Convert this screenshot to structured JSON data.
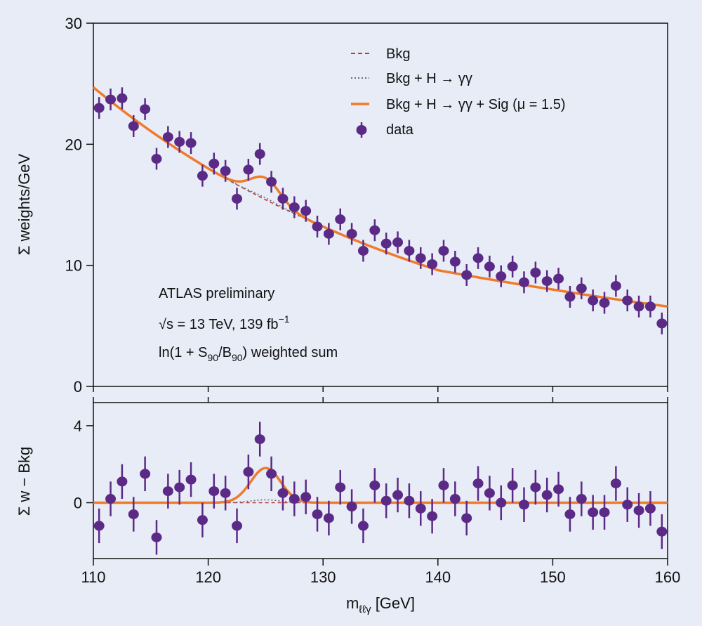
{
  "chart_data": [
    {
      "type": "scatter",
      "panel": "main",
      "ylabel": "Σ weights/GeV",
      "xlim": [
        110,
        160
      ],
      "ylim": [
        0,
        30
      ],
      "yticks": [
        0,
        10,
        20,
        30
      ],
      "legend": {
        "placement": "top-right",
        "entries": [
          {
            "label": "Bkg",
            "style": "dashed",
            "color": "#c0392b"
          },
          {
            "label": "Bkg + H → γγ",
            "style": "dotted",
            "color": "#5b6f85"
          },
          {
            "label": "Bkg + H → γγ + Sig (μ = 1.5)",
            "style": "solid",
            "color": "#f07a2a"
          },
          {
            "label": "data",
            "style": "marker",
            "color": "#5b2a86"
          }
        ]
      },
      "annotations": {
        "experiment": "ATLAS preliminary",
        "energy_prefix": "√s = 13 TeV, 139 fb",
        "energy_sup": "−1",
        "weight_a": "ln(1 + S",
        "weight_sub1": "90",
        "weight_b": "/B",
        "weight_sub2": "90",
        "weight_c": ") weighted sum"
      },
      "series": [
        {
          "name": "data",
          "x": [
            110.5,
            111.5,
            112.5,
            113.5,
            114.5,
            115.5,
            116.5,
            117.5,
            118.5,
            119.5,
            120.5,
            121.5,
            122.5,
            123.5,
            124.5,
            125.5,
            126.5,
            127.5,
            128.5,
            129.5,
            130.5,
            131.5,
            132.5,
            133.5,
            134.5,
            135.5,
            136.5,
            137.5,
            138.5,
            139.5,
            140.5,
            141.5,
            142.5,
            143.5,
            144.5,
            145.5,
            146.5,
            147.5,
            148.5,
            149.5,
            150.5,
            151.5,
            152.5,
            153.5,
            154.5,
            155.5,
            156.5,
            157.5,
            158.5,
            159.5
          ],
          "y": [
            23.0,
            23.7,
            23.8,
            21.5,
            22.9,
            18.8,
            20.6,
            20.2,
            20.1,
            17.4,
            18.4,
            17.8,
            15.5,
            17.9,
            19.2,
            16.9,
            15.5,
            14.8,
            14.5,
            13.2,
            12.6,
            13.8,
            12.6,
            11.2,
            12.9,
            11.8,
            11.9,
            11.2,
            10.6,
            10.1,
            11.2,
            10.3,
            9.2,
            10.6,
            9.9,
            9.1,
            9.9,
            8.6,
            9.4,
            8.7,
            8.9,
            7.4,
            8.1,
            7.1,
            6.9,
            8.3,
            7.1,
            6.6,
            6.6,
            5.2
          ],
          "yerr": 0.9
        },
        {
          "name": "Bkg",
          "model": "exponential",
          "x": [
            110,
            120,
            130,
            140,
            150,
            160
          ],
          "y": [
            24.7,
            18.0,
            13.2,
            9.6,
            8.0,
            6.6
          ]
        },
        {
          "name": "Bkg + H → γγ",
          "model": "bkg + small Higgs peak at 125 GeV"
        },
        {
          "name": "Bkg + H → γγ + Sig (μ = 1.5)",
          "model": "bkg + gaussian",
          "peak_mean": 125.0,
          "peak_sigma": 1.3,
          "peak_amplitude": 1.8
        }
      ]
    },
    {
      "type": "scatter",
      "panel": "residual",
      "xlabel_main": "m",
      "xlabel_sub": "ℓℓγ",
      "xlabel_unit": " [GeV]",
      "ylabel": "Σ w − Bkg",
      "xlim": [
        110,
        160
      ],
      "ylim": [
        -2.9,
        5.2
      ],
      "xticks": [
        110,
        120,
        130,
        140,
        150,
        160
      ],
      "yticks": [
        0,
        4
      ],
      "series": [
        {
          "name": "data − Bkg",
          "x": [
            110.5,
            111.5,
            112.5,
            113.5,
            114.5,
            115.5,
            116.5,
            117.5,
            118.5,
            119.5,
            120.5,
            121.5,
            122.5,
            123.5,
            124.5,
            125.5,
            126.5,
            127.5,
            128.5,
            129.5,
            130.5,
            131.5,
            132.5,
            133.5,
            134.5,
            135.5,
            136.5,
            137.5,
            138.5,
            139.5,
            140.5,
            141.5,
            142.5,
            143.5,
            144.5,
            145.5,
            146.5,
            147.5,
            148.5,
            149.5,
            150.5,
            151.5,
            152.5,
            153.5,
            154.5,
            155.5,
            156.5,
            157.5,
            158.5,
            159.5
          ],
          "y": [
            -1.2,
            0.2,
            1.1,
            -0.6,
            1.5,
            -1.8,
            0.6,
            0.8,
            1.2,
            -0.9,
            0.6,
            0.5,
            -1.2,
            1.6,
            3.3,
            1.5,
            0.5,
            0.2,
            0.3,
            -0.6,
            -0.8,
            0.8,
            -0.2,
            -1.2,
            0.9,
            0.1,
            0.4,
            0.1,
            -0.3,
            -0.7,
            0.9,
            0.2,
            -0.8,
            1.0,
            0.5,
            0.0,
            0.9,
            -0.1,
            0.8,
            0.4,
            0.7,
            -0.6,
            0.2,
            -0.5,
            -0.5,
            1.0,
            -0.1,
            -0.4,
            -0.3,
            -1.5
          ],
          "yerr": 0.9
        },
        {
          "name": "Bkg",
          "y": 0
        },
        {
          "name": "Bkg + H → γγ + Sig (μ = 1.5)",
          "model": "gaussian",
          "peak_mean": 125.0,
          "peak_sigma": 1.3,
          "peak_amplitude": 1.8
        }
      ]
    }
  ]
}
